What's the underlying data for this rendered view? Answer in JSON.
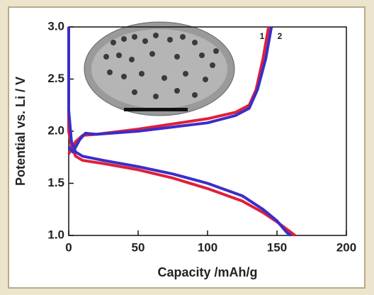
{
  "chart_data": {
    "type": "line",
    "xlabel": "Capacity /mAh/g",
    "ylabel": "Potential vs. Li / V",
    "xlim": [
      0,
      200
    ],
    "ylim": [
      1.0,
      3.0
    ],
    "xticks": [
      0,
      50,
      100,
      150,
      200
    ],
    "yticks": [
      {
        "value": 1,
        "label": "1.0"
      },
      1.5,
      {
        "value": 2,
        "label": "2.0"
      },
      2.5,
      {
        "value": 3,
        "label": "3.0"
      }
    ],
    "series": [
      {
        "name": "1",
        "color": "#e0203a",
        "x": [
          0,
          0,
          2,
          5,
          10,
          25,
          50,
          75,
          100,
          125,
          140,
          150,
          158,
          163,
          null,
          0,
          5,
          10,
          20,
          50,
          75,
          100,
          120,
          130,
          135,
          140,
          144
        ],
        "values": [
          3.0,
          2.0,
          1.85,
          1.76,
          1.72,
          1.69,
          1.63,
          1.55,
          1.45,
          1.33,
          1.22,
          1.13,
          1.05,
          1.0,
          null,
          1.78,
          1.9,
          1.96,
          1.97,
          2.02,
          2.07,
          2.12,
          2.18,
          2.25,
          2.4,
          2.7,
          3.0
        ]
      },
      {
        "name": "2",
        "color": "#3a2ec8",
        "x": [
          0,
          0,
          2,
          5,
          10,
          25,
          50,
          75,
          100,
          125,
          140,
          150,
          157,
          160,
          null,
          0,
          3,
          8,
          12,
          20,
          50,
          75,
          100,
          120,
          130,
          136,
          142,
          146
        ],
        "values": [
          3.0,
          2.2,
          1.9,
          1.8,
          1.76,
          1.72,
          1.66,
          1.59,
          1.5,
          1.38,
          1.25,
          1.14,
          1.03,
          1.0,
          null,
          1.85,
          1.8,
          1.92,
          1.98,
          1.97,
          2.0,
          2.04,
          2.08,
          2.15,
          2.22,
          2.4,
          2.7,
          3.0
        ]
      }
    ]
  }
}
